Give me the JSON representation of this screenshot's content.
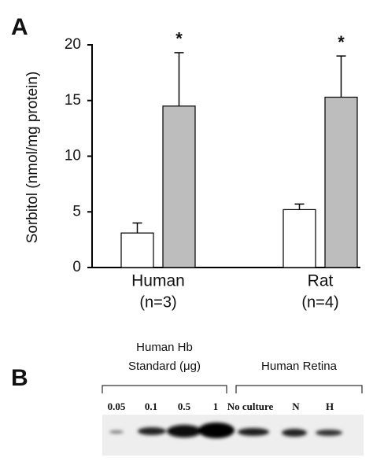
{
  "chart_data": {
    "type": "bar",
    "panel_label": "A",
    "ylabel": "Sorbitol (nmol/mg protein)",
    "categories": [
      "Human",
      "Rat"
    ],
    "category_notes": [
      "(n=3)",
      "(n=4)"
    ],
    "series": [
      {
        "color": "#ffffff",
        "values": [
          3.1,
          5.2
        ],
        "errors": [
          0.9,
          0.5
        ]
      },
      {
        "color": "#bdbdbd",
        "values": [
          14.5,
          15.3
        ],
        "errors": [
          4.8,
          3.7
        ],
        "markers": [
          "*",
          "*"
        ]
      }
    ],
    "ylim": [
      0,
      20
    ],
    "yticks": [
      0,
      5,
      10,
      15,
      20
    ]
  },
  "blot": {
    "panel_label": "B",
    "groups": [
      {
        "label": [
          "Human Hb",
          "Standard (μg)"
        ],
        "lanes": [
          "0.05",
          "0.1",
          "0.5",
          "1"
        ]
      },
      {
        "label": [
          "Human Retina"
        ],
        "lanes": [
          "No culture",
          "N",
          "H"
        ]
      }
    ]
  }
}
